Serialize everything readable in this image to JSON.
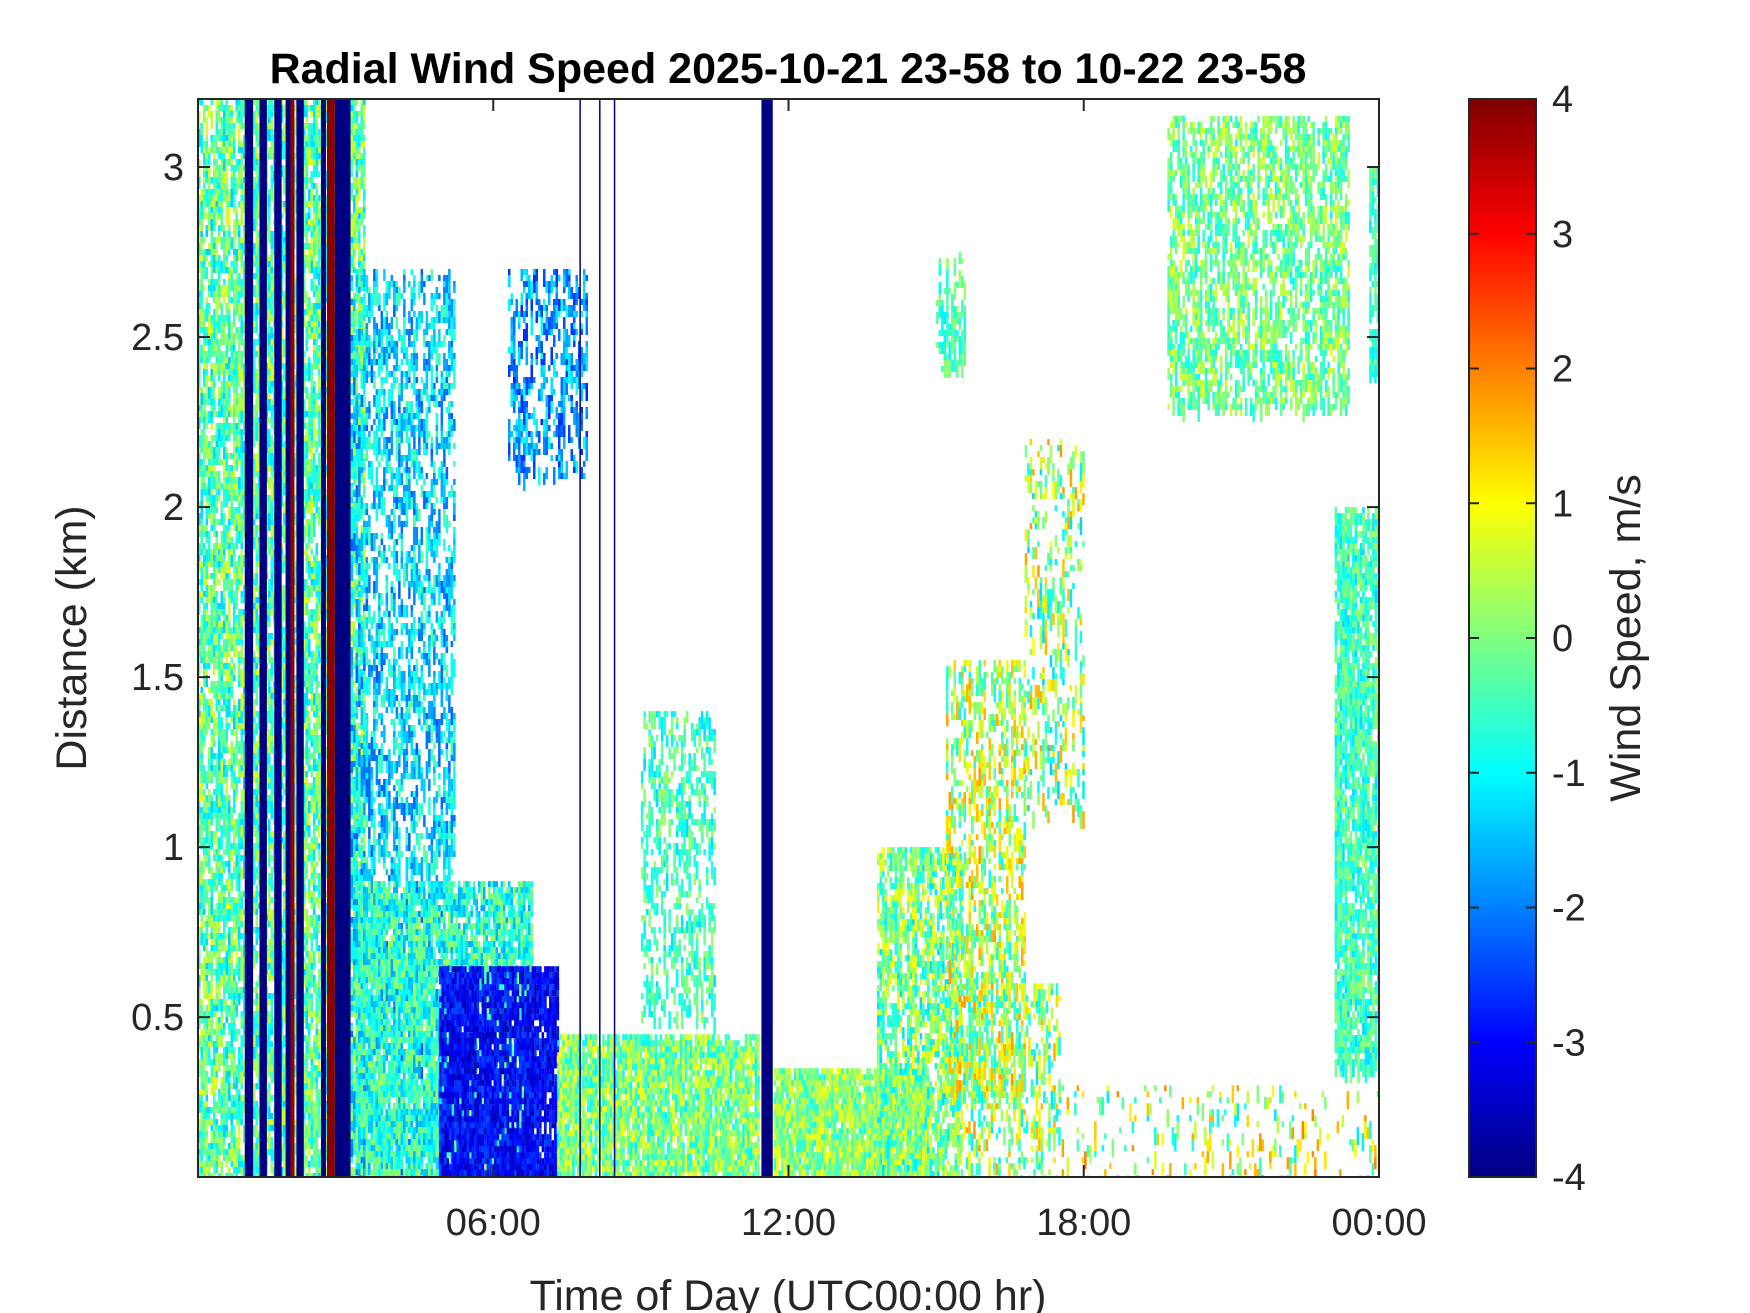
{
  "chart_data": {
    "type": "heatmap",
    "title": "Radial Wind Speed 2025-10-21 23-58 to 10-22 23-58",
    "xlabel": "Time of Day (UTC00:00 hr)",
    "ylabel": "Distance (km)",
    "colorbar_label": "Wind Speed, m/s",
    "xlim_hours": [
      0,
      24
    ],
    "ylim_km": [
      0.03,
      3.2
    ],
    "clim": [
      -4,
      4
    ],
    "colormap": "jet",
    "x_ticks": [
      {
        "value": 6,
        "label": "06:00"
      },
      {
        "value": 12,
        "label": "12:00"
      },
      {
        "value": 18,
        "label": "18:00"
      },
      {
        "value": 24,
        "label": "00:00"
      }
    ],
    "y_ticks": [
      {
        "value": 0.5,
        "label": "0.5"
      },
      {
        "value": 1,
        "label": "1"
      },
      {
        "value": 1.5,
        "label": "1.5"
      },
      {
        "value": 2,
        "label": "2"
      },
      {
        "value": 2.5,
        "label": "2.5"
      },
      {
        "value": 3,
        "label": "3"
      }
    ],
    "colorbar_ticks": [
      {
        "value": 4,
        "label": "4"
      },
      {
        "value": 3,
        "label": "3"
      },
      {
        "value": 2,
        "label": "2"
      },
      {
        "value": 1,
        "label": "1"
      },
      {
        "value": 0,
        "label": "0"
      },
      {
        "value": -1,
        "label": "-1"
      },
      {
        "value": -2,
        "label": "-2"
      },
      {
        "value": -3,
        "label": "-3"
      },
      {
        "value": -4,
        "label": "-4"
      }
    ],
    "regions": [
      {
        "t0": 0.0,
        "t1": 3.4,
        "d0": 0.03,
        "d1": 3.2,
        "speed": -0.3,
        "spread": 1.1,
        "coverage": 0.6
      },
      {
        "t0": 3.0,
        "t1": 5.2,
        "d0": 0.03,
        "d1": 2.7,
        "speed": -1.3,
        "spread": 1.0,
        "coverage": 0.35
      },
      {
        "t0": 3.2,
        "t1": 6.8,
        "d0": 0.03,
        "d1": 0.9,
        "speed": -0.7,
        "spread": 1.0,
        "coverage": 0.7
      },
      {
        "t0": 4.9,
        "t1": 7.3,
        "d0": 0.03,
        "d1": 0.65,
        "speed": -3.0,
        "spread": 0.6,
        "coverage": 0.8
      },
      {
        "t0": 6.3,
        "t1": 7.9,
        "d0": 2.1,
        "d1": 2.7,
        "speed": -1.8,
        "spread": 0.9,
        "coverage": 0.35
      },
      {
        "t0": 7.3,
        "t1": 11.4,
        "d0": 0.03,
        "d1": 0.45,
        "speed": 0.0,
        "spread": 1.1,
        "coverage": 0.8
      },
      {
        "t0": 9.0,
        "t1": 10.5,
        "d0": 0.5,
        "d1": 1.4,
        "speed": -0.5,
        "spread": 0.8,
        "coverage": 0.3
      },
      {
        "t0": 11.7,
        "t1": 14.8,
        "d0": 0.03,
        "d1": 0.35,
        "speed": 0.1,
        "spread": 1.0,
        "coverage": 0.85
      },
      {
        "t0": 13.8,
        "t1": 15.5,
        "d0": 0.03,
        "d1": 1.0,
        "speed": -0.1,
        "spread": 1.2,
        "coverage": 0.55
      },
      {
        "t0": 15.2,
        "t1": 16.8,
        "d0": 0.25,
        "d1": 1.55,
        "speed": 0.4,
        "spread": 1.4,
        "coverage": 0.35
      },
      {
        "t0": 15.5,
        "t1": 17.5,
        "d0": 0.03,
        "d1": 0.6,
        "speed": 0.3,
        "spread": 1.5,
        "coverage": 0.25
      },
      {
        "t0": 16.8,
        "t1": 18.0,
        "d0": 1.1,
        "d1": 2.2,
        "speed": 0.2,
        "spread": 1.6,
        "coverage": 0.22
      },
      {
        "t0": 15.0,
        "t1": 15.6,
        "d0": 2.4,
        "d1": 2.75,
        "speed": -0.4,
        "spread": 0.7,
        "coverage": 0.35
      },
      {
        "t0": 17.5,
        "t1": 24.0,
        "d0": 0.03,
        "d1": 0.3,
        "speed": 0.4,
        "spread": 1.6,
        "coverage": 0.1
      },
      {
        "t0": 19.7,
        "t1": 23.4,
        "d0": 2.3,
        "d1": 3.15,
        "speed": -0.1,
        "spread": 0.9,
        "coverage": 0.45
      },
      {
        "t0": 23.1,
        "t1": 24.0,
        "d0": 0.35,
        "d1": 2.0,
        "speed": -0.5,
        "spread": 0.8,
        "coverage": 0.7
      },
      {
        "t0": 23.8,
        "t1": 24.0,
        "d0": 2.4,
        "d1": 3.0,
        "speed": -0.6,
        "spread": 0.6,
        "coverage": 0.6
      }
    ],
    "vertical_bands": [
      {
        "t0": 0.95,
        "t1": 1.12,
        "d0": 0.03,
        "d1": 3.2,
        "speed": -4.0
      },
      {
        "t0": 1.25,
        "t1": 1.4,
        "d0": 0.03,
        "d1": 3.2,
        "speed": -4.0
      },
      {
        "t0": 1.55,
        "t1": 1.7,
        "d0": 0.03,
        "d1": 3.2,
        "speed": -3.9
      },
      {
        "t0": 1.78,
        "t1": 1.88,
        "d0": 0.03,
        "d1": 3.2,
        "speed": -4.0
      },
      {
        "t0": 1.88,
        "t1": 1.96,
        "d0": 0.03,
        "d1": 3.2,
        "speed": 3.8
      },
      {
        "t0": 2.0,
        "t1": 2.15,
        "d0": 0.03,
        "d1": 3.2,
        "speed": -4.0
      },
      {
        "t0": 2.5,
        "t1": 2.6,
        "d0": 0.03,
        "d1": 3.2,
        "speed": -4.0
      },
      {
        "t0": 2.62,
        "t1": 2.78,
        "d0": 0.03,
        "d1": 3.2,
        "speed": 3.9
      },
      {
        "t0": 2.78,
        "t1": 3.1,
        "d0": 0.03,
        "d1": 3.2,
        "speed": -4.0
      },
      {
        "t0": 7.75,
        "t1": 7.78,
        "d0": 0.03,
        "d1": 3.2,
        "speed": -4.0
      },
      {
        "t0": 8.15,
        "t1": 8.18,
        "d0": 0.03,
        "d1": 3.2,
        "speed": -4.0
      },
      {
        "t0": 8.45,
        "t1": 8.48,
        "d0": 0.03,
        "d1": 3.2,
        "speed": -4.0
      },
      {
        "t0": 11.45,
        "t1": 11.68,
        "d0": 0.03,
        "d1": 3.2,
        "speed": -4.0
      }
    ]
  }
}
